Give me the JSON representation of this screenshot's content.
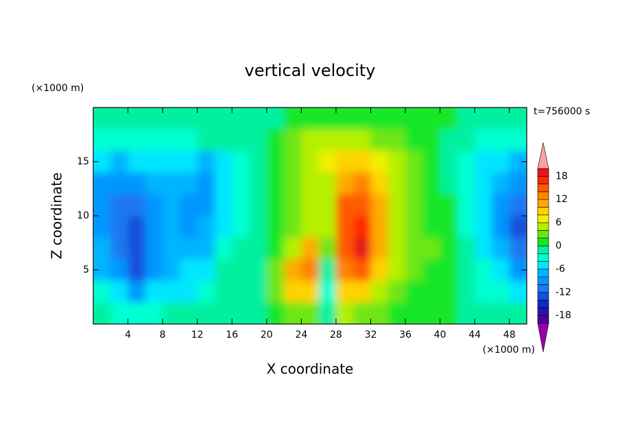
{
  "chart_data": {
    "type": "contour",
    "title": "vertical velocity",
    "x_label": "X coordinate",
    "y_label": "Z coordinate",
    "x_unit": "(×1000 m)",
    "y_unit": "(×1000 m)",
    "time_label": "t=756000 s",
    "xlim": [
      0,
      50
    ],
    "ylim": [
      0,
      20
    ],
    "xticks": [
      4,
      8,
      12,
      16,
      20,
      24,
      28,
      32,
      36,
      40,
      44,
      48
    ],
    "yticks": [
      5,
      10,
      15
    ],
    "x": [
      1,
      3,
      5,
      7,
      9,
      11,
      13,
      15,
      17,
      19,
      21,
      23,
      25,
      27,
      29,
      31,
      33,
      35,
      37,
      39,
      41,
      43,
      45,
      47,
      49
    ],
    "y": [
      19,
      17,
      15,
      13,
      11,
      9,
      7,
      5,
      3,
      1
    ],
    "z": [
      [
        -2,
        -2,
        -2,
        -2,
        -2,
        -2,
        -2,
        -2,
        -1,
        -1,
        -1,
        1,
        1,
        1,
        1,
        1,
        1,
        1,
        1,
        1,
        1,
        -1,
        -2,
        -2,
        -2
      ],
      [
        -4,
        -4,
        -3,
        -3,
        -3,
        -3,
        -2,
        -2,
        -1,
        -1,
        1,
        3,
        4,
        5,
        5,
        5,
        3,
        3,
        1,
        1,
        -1,
        -2,
        -3,
        -4,
        -3
      ],
      [
        -6,
        -7,
        -6,
        -5,
        -5,
        -5,
        -7,
        -5,
        -3,
        -1,
        1,
        3,
        5,
        6,
        8,
        8,
        7,
        4,
        3,
        1,
        -1,
        -3,
        -5,
        -6,
        -7
      ],
      [
        -9,
        -10,
        -9,
        -8,
        -7,
        -8,
        -9,
        -6,
        -3,
        -1,
        1,
        3,
        4,
        5,
        10,
        12,
        9,
        5,
        3,
        1,
        -1,
        -3,
        -5,
        -8,
        -10
      ],
      [
        -10,
        -11,
        -12,
        -10,
        -8,
        -9,
        -10,
        -6,
        -3,
        -1,
        1,
        3,
        4,
        5,
        14,
        15,
        11,
        5,
        3,
        1,
        0,
        -3,
        -5,
        -10,
        -12
      ],
      [
        -9,
        -11,
        -13,
        -10,
        -8,
        -9,
        -8,
        -5,
        -3,
        -1,
        1,
        3,
        5,
        5,
        14,
        16,
        11,
        5,
        3,
        1,
        1,
        -3,
        -5,
        -9,
        -13
      ],
      [
        -8,
        -11,
        -14,
        -10,
        -8,
        -7,
        -7,
        -3,
        -2,
        -1,
        1,
        4,
        10,
        2,
        15,
        19,
        10,
        5,
        2,
        3,
        1,
        -2,
        -5,
        -8,
        -11
      ],
      [
        -7,
        -9,
        -13,
        -9,
        -7,
        -6,
        -5,
        -2,
        -1,
        -1,
        2,
        10,
        13,
        -2,
        13,
        14,
        8,
        4,
        2,
        1,
        1,
        -2,
        -4,
        -6,
        -9
      ],
      [
        -4,
        -6,
        -9,
        -6,
        -5,
        -5,
        -4,
        -2,
        -1,
        -1,
        2,
        8,
        9,
        -4,
        8,
        8,
        5,
        3,
        1,
        1,
        1,
        -1,
        -3,
        -4,
        -5
      ],
      [
        -2,
        -3,
        -3,
        -3,
        -2,
        -2,
        -2,
        -1,
        -1,
        -1,
        1,
        2,
        3,
        -2,
        4,
        3,
        2,
        1,
        1,
        1,
        1,
        -1,
        -2,
        -2,
        -2
      ]
    ],
    "levels": [
      -20,
      -18,
      -16,
      -14,
      -12,
      -10,
      -8,
      -6,
      -4,
      -2,
      0,
      2,
      4,
      6,
      8,
      10,
      12,
      14,
      16,
      18,
      20
    ],
    "colors": [
      "#4b0096",
      "#2814b4",
      "#1428c8",
      "#1450dc",
      "#1e78f0",
      "#0096ff",
      "#00b4ff",
      "#00e6ff",
      "#00ffd2",
      "#00f0a0",
      "#14e628",
      "#6ee614",
      "#b4f000",
      "#f0f000",
      "#ffd200",
      "#ffaa00",
      "#ff8200",
      "#ff5a00",
      "#ff2800",
      "#e61414"
    ],
    "under_color": "#9900aa",
    "over_color": "#ffa0a0",
    "colorbar_ticks": [
      -18,
      -12,
      -6,
      0,
      6,
      12,
      18
    ]
  }
}
